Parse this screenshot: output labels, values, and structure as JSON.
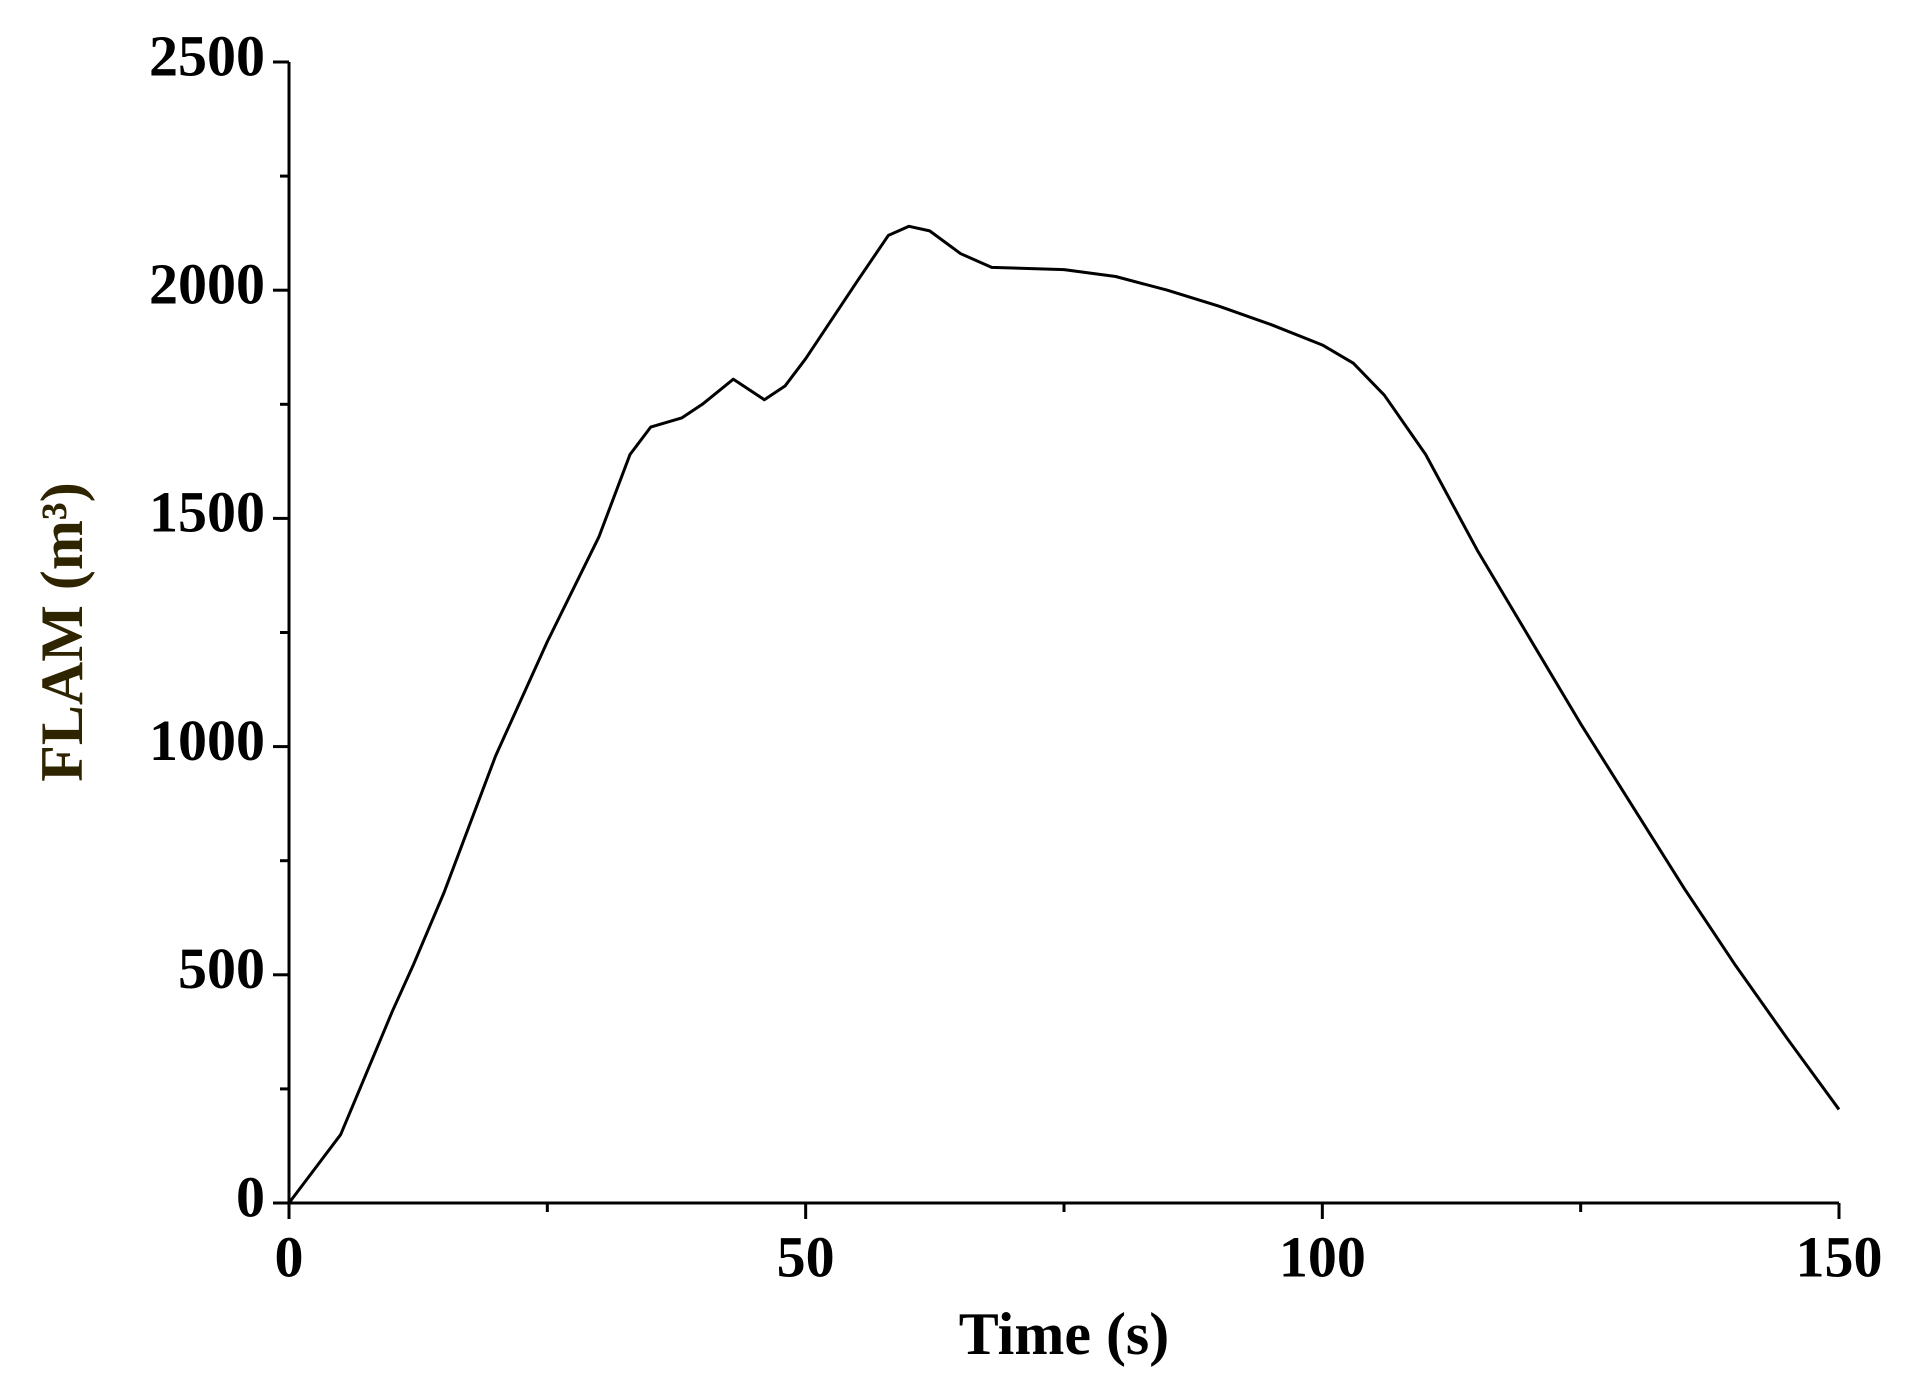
{
  "chart_data": {
    "type": "line",
    "xlabel": "Time (s)",
    "ylabel": "FLAM (m³)",
    "x": [
      0,
      2,
      5,
      10,
      12,
      15,
      20,
      25,
      30,
      33,
      35,
      38,
      40,
      43,
      46,
      48,
      50,
      55,
      58,
      60,
      62,
      65,
      68,
      75,
      80,
      85,
      90,
      95,
      100,
      103,
      106,
      110,
      115,
      120,
      125,
      130,
      135,
      140,
      145,
      150
    ],
    "series": [
      {
        "color": "#000000",
        "values": [
          0,
          60,
          150,
          420,
          520,
          680,
          980,
          1230,
          1460,
          1640,
          1700,
          1720,
          1750,
          1805,
          1760,
          1790,
          1850,
          2020,
          2120,
          2140,
          2130,
          2080,
          2050,
          2045,
          2030,
          2000,
          1965,
          1925,
          1880,
          1840,
          1770,
          1640,
          1430,
          1240,
          1050,
          870,
          690,
          520,
          360,
          205
        ]
      }
    ],
    "xlim": [
      0,
      150
    ],
    "xticks": [
      0,
      50,
      100,
      150
    ],
    "xminor": [
      25,
      75,
      125
    ],
    "ylim": [
      0,
      2500
    ],
    "yticks": [
      0,
      500,
      1000,
      1500,
      2000,
      2500
    ],
    "yminor": [
      250,
      750,
      1250,
      1750,
      2250
    ]
  }
}
